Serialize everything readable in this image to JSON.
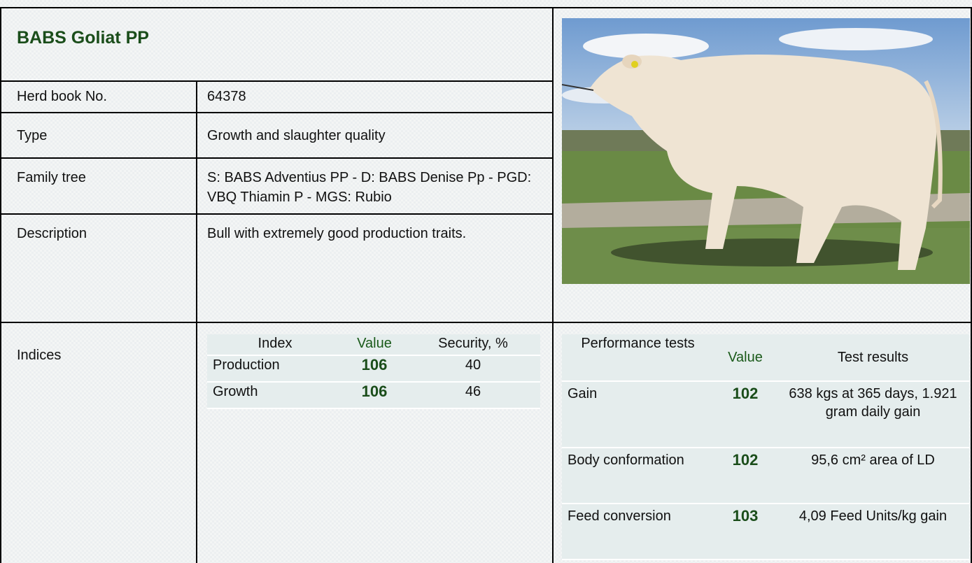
{
  "title": "BABS Goliat PP",
  "details": {
    "rows": [
      [
        "Herd book No.",
        "64378"
      ],
      [
        "Type",
        "Growth and slaughter quality"
      ],
      [
        "Family tree",
        "S: BABS Adventius PP - D: BABS Denise Pp - PGD: VBQ Thiamin P - MGS: Rubio"
      ],
      [
        "Description",
        "Bull with extremely good production traits."
      ]
    ]
  },
  "indices": {
    "label": "Indices",
    "header": [
      "Index",
      "Value",
      "Security, %"
    ],
    "rows": [
      [
        "Production",
        "106",
        "40"
      ],
      [
        "Growth",
        "106",
        "46"
      ]
    ]
  },
  "performance": {
    "header": [
      "Performance tests",
      "Value",
      "Test results"
    ],
    "rows": [
      [
        "Gain",
        "102",
        "638 kgs at 365 days, 1.921 gram daily gain"
      ],
      [
        "Body conformation",
        "102",
        "95,6 cm² area of LD"
      ],
      [
        "Feed conversion",
        "103",
        "4,09 Feed Units/kg gain"
      ]
    ]
  }
}
